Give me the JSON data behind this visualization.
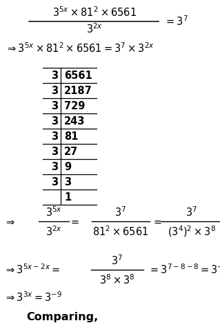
{
  "background_color": "#ffffff",
  "figsize": [
    3.19,
    4.8
  ],
  "dpi": 100,
  "fs": 10.5,
  "div_table": {
    "rows": [
      [
        "3",
        "6561"
      ],
      [
        "3",
        "2187"
      ],
      [
        "3",
        "729"
      ],
      [
        "3",
        "243"
      ],
      [
        "3",
        "81"
      ],
      [
        "3",
        "27"
      ],
      [
        "3",
        "9"
      ],
      [
        "3",
        "3"
      ],
      [
        "",
        "1"
      ]
    ]
  }
}
